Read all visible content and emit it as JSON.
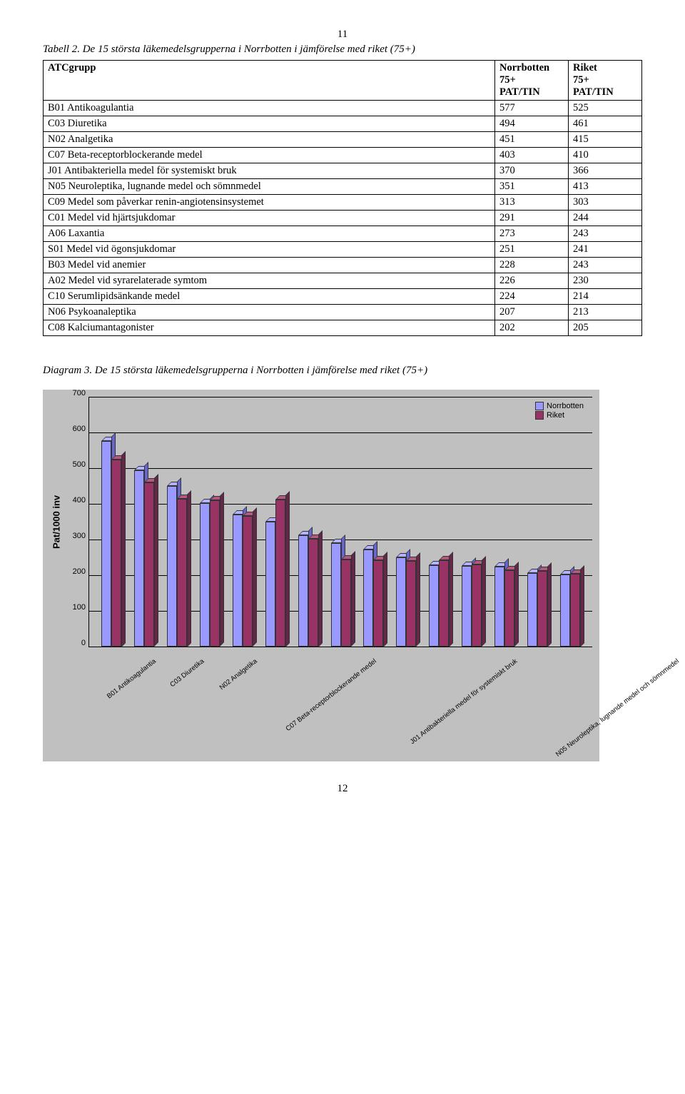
{
  "page_top_num": "11",
  "page_bottom_num": "12",
  "table_title": "Tabell 2. De 15 största läkemedelsgrupperna i Norrbotten i jämförelse med riket (75+)",
  "table": {
    "headers": {
      "c1": "ATCgrupp",
      "c2a": "Norrbotten",
      "c2b": "75+",
      "c2c": "PAT/TIN",
      "c3a": "Riket",
      "c3b": "75+",
      "c3c": "PAT/TIN"
    },
    "rows": [
      {
        "label": "B01 Antikoagulantia",
        "n": "577",
        "r": "525"
      },
      {
        "label": "C03 Diuretika",
        "n": "494",
        "r": "461"
      },
      {
        "label": "N02 Analgetika",
        "n": "451",
        "r": "415"
      },
      {
        "label": "C07 Beta-receptorblockerande medel",
        "n": "403",
        "r": "410"
      },
      {
        "label": "J01 Antibakteriella medel för systemiskt bruk",
        "n": "370",
        "r": "366"
      },
      {
        "label": "N05 Neuroleptika, lugnande medel och sömnmedel",
        "n": "351",
        "r": "413"
      },
      {
        "label": "C09 Medel som påverkar renin-angiotensinsystemet",
        "n": "313",
        "r": "303"
      },
      {
        "label": "C01 Medel vid hjärtsjukdomar",
        "n": "291",
        "r": "244"
      },
      {
        "label": "A06 Laxantia",
        "n": "273",
        "r": "243"
      },
      {
        "label": "S01 Medel vid ögonsjukdomar",
        "n": "251",
        "r": "241"
      },
      {
        "label": "B03 Medel vid anemier",
        "n": "228",
        "r": "243"
      },
      {
        "label": "A02 Medel vid syrarelaterade symtom",
        "n": "226",
        "r": "230"
      },
      {
        "label": "C10 Serumlipidsänkande medel",
        "n": "224",
        "r": "214"
      },
      {
        "label": "N06 Psykoanaleptika",
        "n": "207",
        "r": "213"
      },
      {
        "label": "C08 Kalciumantagonister",
        "n": "202",
        "r": "205"
      }
    ]
  },
  "diagram_title": "Diagram 3. De 15 största läkemedelsgrupperna i Norrbotten i jämförelse med riket (75+)",
  "chart": {
    "type": "bar",
    "ylabel": "Pat/1000 inv",
    "ylim": [
      0,
      700
    ],
    "ytick_step": 100,
    "yticks": [
      "700",
      "600",
      "500",
      "400",
      "300",
      "200",
      "100",
      "0"
    ],
    "background_color": "#c0c0c0",
    "grid_color": "#000000",
    "series": [
      {
        "name": "Norrbotten",
        "face": "#9999ff",
        "top": "#b3b3ff",
        "side": "#6666cc"
      },
      {
        "name": "Riket",
        "face": "#993366",
        "top": "#b35980",
        "side": "#66264a"
      }
    ],
    "categories": [
      "B01 Antikoagulantia",
      "C03 Diuretika",
      "N02 Analgetika",
      "C07 Beta-receptorblockerande medel",
      "J01 Antibakteriella medel för systemiskt bruk",
      "N05 Neuroleptika, lugnande medel och sömnmedel",
      "C09 Medel som påverkar renin-angiotensinsystemet",
      "C01 Medel vid hjärtsjukdomar",
      "A06 Laxantia",
      "S01 Medel vid ögonsjukdomar",
      "B03 Medel vid anemier",
      "A02 Medel vid syrarelaterade symtom",
      "C10 Serumlipidsänkande medel",
      "N06 Psykoanaleptika",
      "C08 Kalciumantagonister"
    ],
    "values_norrbotten": [
      577,
      494,
      451,
      403,
      370,
      351,
      313,
      291,
      273,
      251,
      228,
      226,
      224,
      207,
      202
    ],
    "values_riket": [
      525,
      461,
      415,
      410,
      366,
      413,
      303,
      244,
      243,
      241,
      243,
      230,
      214,
      213,
      205
    ]
  }
}
